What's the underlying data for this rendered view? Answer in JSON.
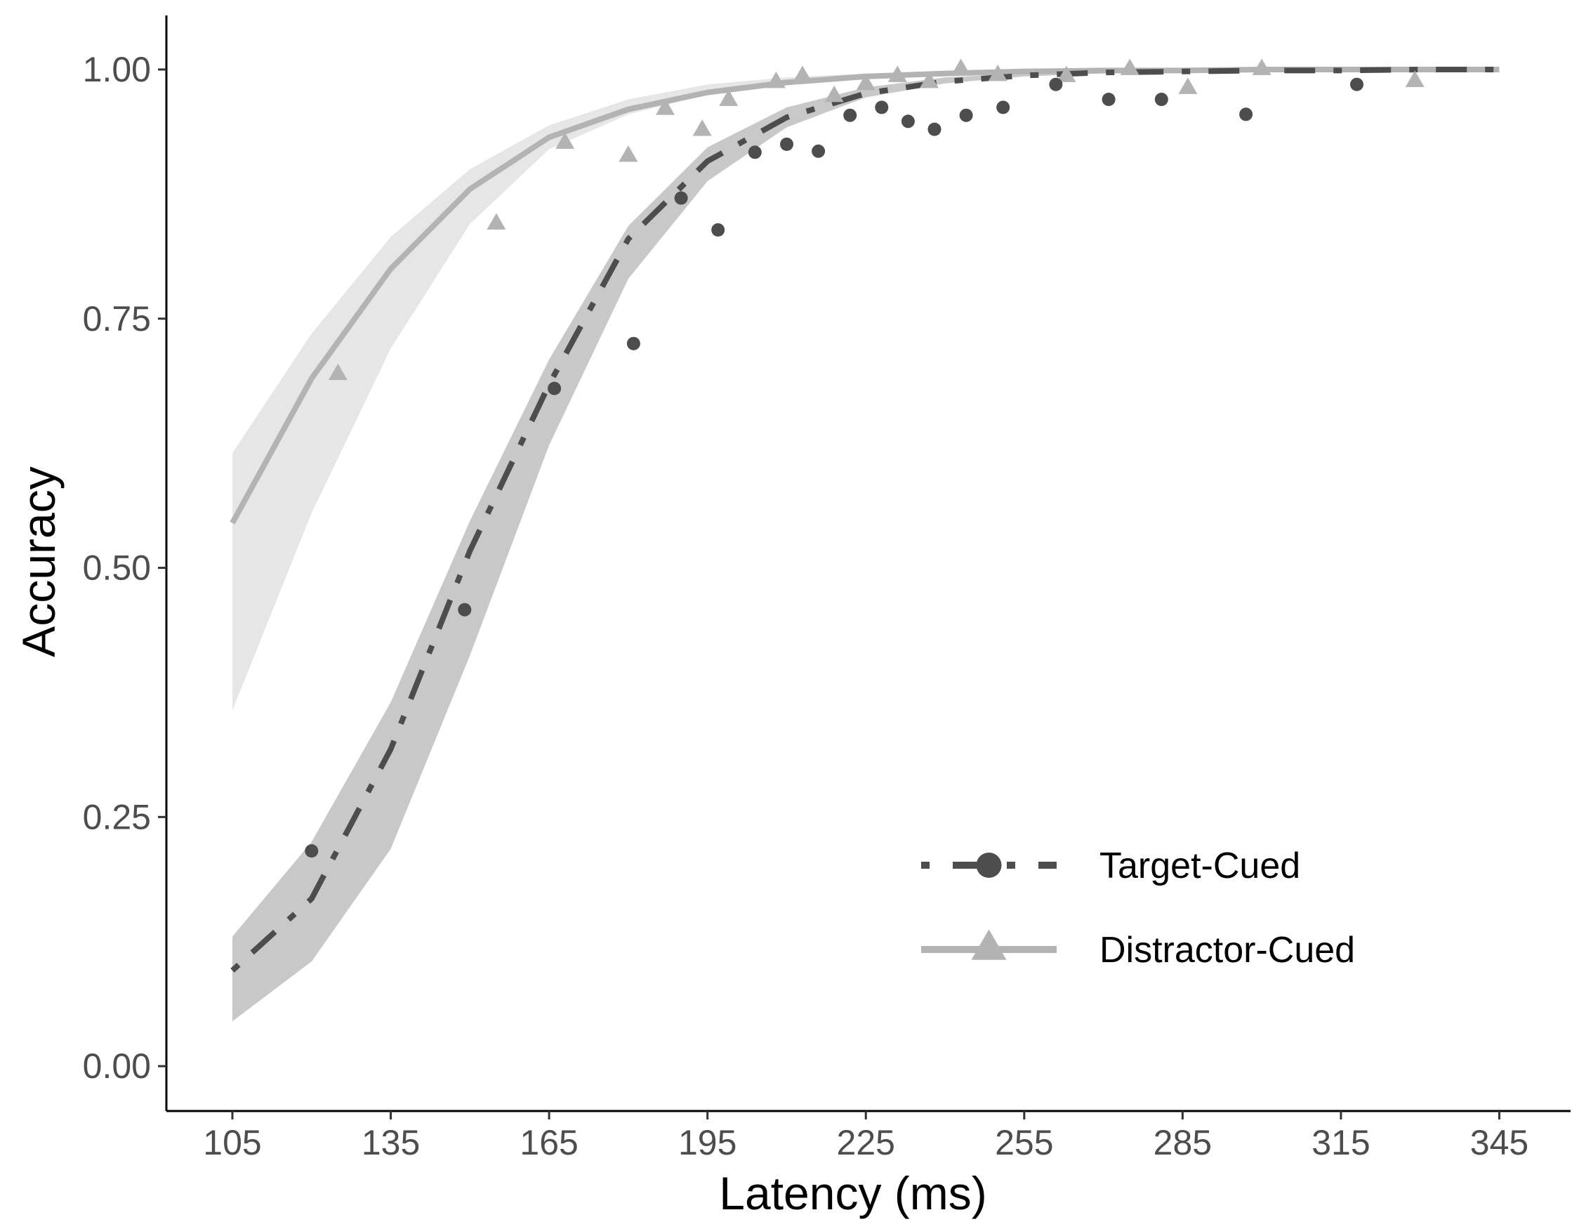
{
  "chart_data": {
    "type": "line",
    "title": "",
    "xlabel": "Latency (ms)",
    "ylabel": "Accuracy",
    "xlim": [
      92.5,
      358.5
    ],
    "ylim": [
      -0.045,
      1.05
    ],
    "x_ticks": [
      105,
      135,
      165,
      195,
      225,
      255,
      285,
      315,
      345
    ],
    "x_tick_labels": [
      "105",
      "135",
      "165",
      "195",
      "225",
      "255",
      "285",
      "315",
      "345"
    ],
    "y_ticks": [
      0,
      0.25,
      0.5,
      0.75,
      1.0
    ],
    "y_tick_labels": [
      "0.00",
      "0.25",
      "0.50",
      "0.75",
      "1.00"
    ],
    "grid": false,
    "legend_position": "bottom-right",
    "series": [
      {
        "name": "Target-Cued",
        "color": "#4d4d4d",
        "ribbon_color": "#c8c8c8",
        "line_style": "dotdash",
        "marker": "circle",
        "fit": {
          "x": [
            105,
            120,
            135,
            150,
            165,
            180,
            195,
            210,
            225,
            240,
            255,
            270,
            285,
            300,
            315,
            330,
            345
          ],
          "y": [
            0.096,
            0.168,
            0.318,
            0.517,
            0.684,
            0.83,
            0.908,
            0.952,
            0.976,
            0.988,
            0.994,
            0.997,
            0.998,
            0.999,
            0.999,
            1.0,
            1.0
          ],
          "lower": [
            0.045,
            0.105,
            0.218,
            0.412,
            0.623,
            0.79,
            0.888,
            0.942,
            0.972,
            0.986,
            0.993,
            0.996,
            0.998,
            0.999,
            0.999,
            1.0,
            1.0
          ],
          "upper": [
            0.13,
            0.225,
            0.365,
            0.547,
            0.709,
            0.843,
            0.922,
            0.962,
            0.982,
            0.992,
            0.996,
            0.998,
            0.999,
            1.0,
            1.0,
            1.0,
            1.0
          ]
        },
        "observed": {
          "x": [
            120,
            149,
            166,
            181,
            190,
            197,
            204,
            210,
            216,
            222,
            228,
            233,
            238,
            244,
            251,
            261,
            271,
            281,
            297,
            318
          ],
          "y": [
            0.216,
            0.458,
            0.68,
            0.725,
            0.871,
            0.839,
            0.917,
            0.925,
            0.918,
            0.954,
            0.962,
            0.948,
            0.94,
            0.954,
            0.962,
            0.985,
            0.97,
            0.97,
            0.955,
            0.985
          ]
        }
      },
      {
        "name": "Distractor-Cued",
        "color": "#b3b3b3",
        "ribbon_color": "#e6e6e6",
        "line_style": "solid",
        "marker": "triangle",
        "fit": {
          "x": [
            105,
            120,
            135,
            150,
            165,
            180,
            195,
            210,
            225,
            240,
            255,
            270,
            285,
            300,
            315,
            330,
            345
          ],
          "y": [
            0.545,
            0.69,
            0.8,
            0.88,
            0.932,
            0.96,
            0.977,
            0.987,
            0.993,
            0.996,
            0.998,
            0.999,
            0.999,
            1.0,
            1.0,
            1.0,
            1.0
          ],
          "lower": [
            0.357,
            0.555,
            0.72,
            0.845,
            0.92,
            0.955,
            0.975,
            0.986,
            0.992,
            0.995,
            0.997,
            0.998,
            0.999,
            1.0,
            1.0,
            1.0,
            1.0
          ],
          "upper": [
            0.615,
            0.735,
            0.832,
            0.9,
            0.944,
            0.97,
            0.985,
            0.992,
            0.996,
            0.998,
            0.999,
            1.0,
            1.0,
            1.0,
            1.0,
            1.0,
            1.0
          ]
        },
        "observed": {
          "x": [
            125,
            155,
            168,
            180,
            187,
            194,
            199,
            208,
            213,
            219,
            225,
            231,
            237,
            243,
            250,
            263,
            275,
            286,
            300,
            329
          ],
          "y": [
            0.694,
            0.845,
            0.926,
            0.913,
            0.96,
            0.939,
            0.969,
            0.987,
            0.993,
            0.973,
            0.985,
            0.993,
            0.987,
            1.0,
            0.994,
            0.993,
            1.0,
            0.981,
            1.0,
            0.988
          ]
        }
      }
    ]
  }
}
